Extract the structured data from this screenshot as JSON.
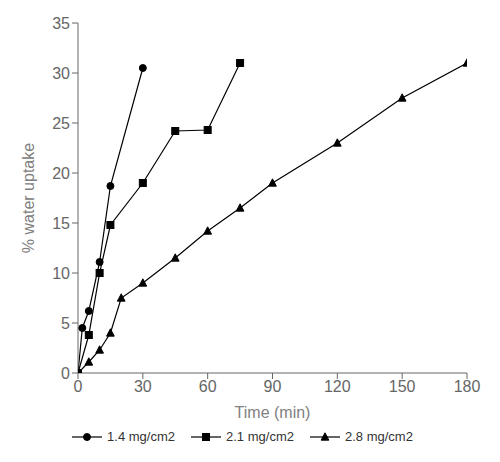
{
  "chart_data": {
    "type": "line",
    "xlabel": "Time (min)",
    "ylabel": "% water uptake",
    "xlim": [
      0,
      180
    ],
    "ylim": [
      0,
      35
    ],
    "xticks": [
      0,
      30,
      60,
      90,
      120,
      150,
      180
    ],
    "yticks": [
      0,
      5,
      10,
      15,
      20,
      25,
      30,
      35
    ],
    "grid": false,
    "legend": "bottom",
    "color": "#000000",
    "series": [
      {
        "name": "1.4 mg/cm2",
        "marker": "circle",
        "x": [
          0,
          2,
          5,
          10,
          15,
          30
        ],
        "values": [
          0,
          4.5,
          6.2,
          11.1,
          18.7,
          30.5
        ]
      },
      {
        "name": "2.1 mg/cm2",
        "marker": "square",
        "x": [
          0,
          5,
          10,
          15,
          30,
          45,
          60,
          75
        ],
        "values": [
          0,
          3.8,
          10.0,
          14.8,
          19.0,
          24.2,
          24.3,
          31.0
        ]
      },
      {
        "name": "2.8 mg/cm2",
        "marker": "triangle",
        "x": [
          0,
          5,
          10,
          15,
          20,
          30,
          45,
          60,
          75,
          90,
          120,
          150,
          180
        ],
        "values": [
          0,
          1.1,
          2.3,
          4.0,
          7.5,
          9.0,
          11.5,
          14.2,
          16.5,
          19.0,
          23.0,
          27.5,
          31.0
        ]
      }
    ]
  }
}
